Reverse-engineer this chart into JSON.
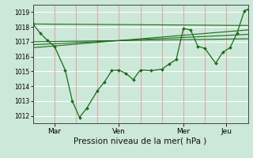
{
  "bg_color": "#cce8d8",
  "plot_bg": "#cce8d8",
  "grid_color_h": "#ffffff",
  "grid_color_v": "#ddaaaa",
  "line_color": "#1a6b1a",
  "ylim": [
    1011.5,
    1019.5
  ],
  "yticks": [
    1012,
    1013,
    1014,
    1015,
    1016,
    1017,
    1018,
    1019
  ],
  "xlabel": "Pression niveau de la mer( hPa )",
  "xlabel_fontsize": 7.5,
  "xtick_labels": [
    "Mar",
    "Ven",
    "Mer",
    "Jeu"
  ],
  "xtick_positions": [
    12,
    48,
    84,
    108
  ],
  "xlim": [
    0,
    120
  ],
  "smooth_lines": [
    {
      "x": [
        0,
        120
      ],
      "y": [
        1018.2,
        1018.1
      ]
    },
    {
      "x": [
        0,
        120
      ],
      "y": [
        1017.0,
        1017.2
      ]
    },
    {
      "x": [
        0,
        120
      ],
      "y": [
        1016.8,
        1017.5
      ]
    },
    {
      "x": [
        0,
        120
      ],
      "y": [
        1016.6,
        1017.8
      ]
    }
  ],
  "jagged_x": [
    0,
    4,
    8,
    12,
    18,
    22,
    26,
    30,
    36,
    40,
    44,
    48,
    52,
    56,
    60,
    66,
    72,
    76,
    80,
    84,
    88,
    92,
    96,
    102,
    106,
    110,
    114,
    118,
    120
  ],
  "jagged_y": [
    1018.2,
    1017.6,
    1017.1,
    1016.7,
    1015.1,
    1013.0,
    1011.9,
    1012.5,
    1013.7,
    1014.3,
    1015.05,
    1015.1,
    1014.85,
    1014.45,
    1015.1,
    1015.05,
    1015.15,
    1015.5,
    1015.8,
    1017.9,
    1017.8,
    1016.7,
    1016.55,
    1015.55,
    1016.3,
    1016.6,
    1017.6,
    1019.1,
    1019.2
  ]
}
